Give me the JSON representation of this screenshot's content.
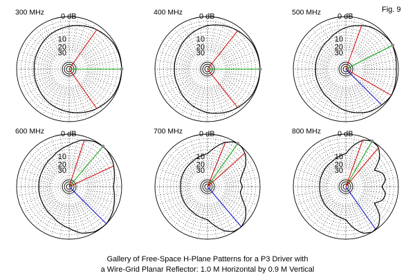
{
  "figure_label": "Fig. 9",
  "caption": {
    "line1": "Gallery of Free-Space H-Plane Patterns for a P3 Driver with",
    "line2": "a Wire-Grid Planar Reflector: 1.0 M Horizontal by 0.9 M Vertical"
  },
  "chart_data": [
    {
      "type": "polar",
      "title": "300 MHz",
      "ring_labels": [
        "0 dB",
        "10",
        "20",
        "30"
      ],
      "ring_levels_db": [
        0,
        -10,
        -20,
        -30
      ],
      "max_gain_azimuth_deg": 0,
      "half_power_azimuths_deg": [
        55,
        -55
      ],
      "pattern": {
        "angles_deg": [
          0,
          30,
          60,
          90,
          120,
          150,
          180,
          210,
          240,
          270,
          300,
          330
        ],
        "gain_db": [
          0,
          -0.8,
          -3.5,
          -7,
          -10,
          -13,
          -14,
          -13,
          -10,
          -7,
          -3.5,
          -0.8
        ]
      },
      "colors": {
        "pattern": "#000000",
        "max_line": "#00a000",
        "half_power": "#d00000",
        "back_line": "#0000cc"
      }
    },
    {
      "type": "polar",
      "title": "400 MHz",
      "ring_labels": [
        "0 dB",
        "10",
        "20",
        "30"
      ],
      "ring_levels_db": [
        0,
        -10,
        -20,
        -30
      ],
      "max_gain_azimuth_deg": 0,
      "half_power_azimuths_deg": [
        52,
        -52
      ],
      "pattern": {
        "angles_deg": [
          0,
          30,
          60,
          90,
          120,
          150,
          180,
          210,
          240,
          270,
          300,
          330
        ],
        "gain_db": [
          0,
          -0.7,
          -3.2,
          -6.5,
          -11,
          -15,
          -16,
          -15,
          -11,
          -6.5,
          -3.2,
          -0.7
        ]
      },
      "colors": {
        "pattern": "#000000",
        "max_line": "#00a000",
        "half_power": "#d00000",
        "back_line": "#0000cc"
      }
    },
    {
      "type": "polar",
      "title": "500 MHz",
      "ring_labels": [
        "0 dB",
        "10",
        "20",
        "30"
      ],
      "ring_levels_db": [
        0,
        -10,
        -20,
        -30
      ],
      "max_gain_azimuth_deg": 27,
      "half_power_azimuths_deg": [
        70,
        -30
      ],
      "back_azimuth_deg": -45,
      "pattern": {
        "angles_deg": [
          0,
          30,
          60,
          90,
          120,
          150,
          180,
          210,
          240,
          270,
          300,
          330
        ],
        "gain_db": [
          -1.5,
          0,
          -2.5,
          -8,
          -15,
          -18,
          -19,
          -18,
          -15,
          -8,
          -2.5,
          0
        ]
      },
      "colors": {
        "pattern": "#000000",
        "max_line": "#00a000",
        "half_power": "#d00000",
        "back_line": "#0000cc"
      }
    },
    {
      "type": "polar",
      "title": "600 MHz",
      "ring_labels": [
        "0 dB",
        "10",
        "20",
        "30"
      ],
      "ring_levels_db": [
        0,
        -10,
        -20,
        -30
      ],
      "max_gain_azimuth_deg": 50,
      "half_power_azimuths_deg": [
        72,
        25
      ],
      "back_azimuth_deg": -45,
      "pattern": {
        "angles_deg": [
          0,
          15,
          30,
          45,
          60,
          75,
          90,
          120,
          150,
          180,
          210,
          240,
          270,
          285,
          300,
          315,
          330,
          345
        ],
        "gain_db": [
          -6,
          -4,
          -1.5,
          0,
          -0.5,
          -3,
          -8,
          -15,
          -18,
          -19,
          -18,
          -15,
          -8,
          -3,
          -0.5,
          0,
          -1.5,
          -4
        ]
      },
      "colors": {
        "pattern": "#000000",
        "max_line": "#00a000",
        "half_power": "#d00000",
        "back_line": "#0000cc"
      }
    },
    {
      "type": "polar",
      "title": "700 MHz",
      "ring_labels": [
        "0 dB",
        "10",
        "20",
        "30"
      ],
      "ring_levels_db": [
        0,
        -10,
        -20,
        -30
      ],
      "max_gain_azimuth_deg": 55,
      "half_power_azimuths_deg": [
        68,
        42
      ],
      "back_azimuth_deg": -50,
      "pattern": {
        "angles_deg": [
          0,
          10,
          20,
          30,
          40,
          50,
          60,
          70,
          80,
          90,
          120,
          150,
          180,
          210,
          240,
          270,
          280,
          290,
          300,
          310,
          320,
          330,
          340,
          350
        ],
        "gain_db": [
          -14,
          -16,
          -12,
          -6,
          -2,
          0,
          -0.5,
          -4,
          -10,
          -16,
          -20,
          -22,
          -23,
          -22,
          -20,
          -16,
          -10,
          -4,
          -0.5,
          0,
          -2,
          -6,
          -12,
          -16
        ]
      },
      "colors": {
        "pattern": "#000000",
        "max_line": "#00a000",
        "half_power": "#d00000",
        "back_line": "#0000cc"
      }
    },
    {
      "type": "polar",
      "title": "800 MHz",
      "ring_labels": [
        "0 dB",
        "10",
        "20",
        "30"
      ],
      "ring_levels_db": [
        0,
        -10,
        -20,
        -30
      ],
      "max_gain_azimuth_deg": 60,
      "half_power_azimuths_deg": [
        70,
        50
      ],
      "back_azimuth_deg": -55,
      "pattern": {
        "angles_deg": [
          0,
          10,
          20,
          30,
          40,
          50,
          60,
          70,
          80,
          90,
          120,
          150,
          180,
          210,
          240,
          270,
          280,
          290,
          300,
          310,
          320,
          330,
          340,
          350
        ],
        "gain_db": [
          -13,
          -9,
          -10,
          -16,
          -6,
          -1,
          0,
          -2,
          -8,
          -16,
          -21,
          -23,
          -24,
          -23,
          -21,
          -16,
          -8,
          -2,
          0,
          -1,
          -6,
          -16,
          -10,
          -9
        ]
      },
      "colors": {
        "pattern": "#000000",
        "max_line": "#00a000",
        "half_power": "#d00000",
        "back_line": "#0000cc"
      }
    }
  ]
}
